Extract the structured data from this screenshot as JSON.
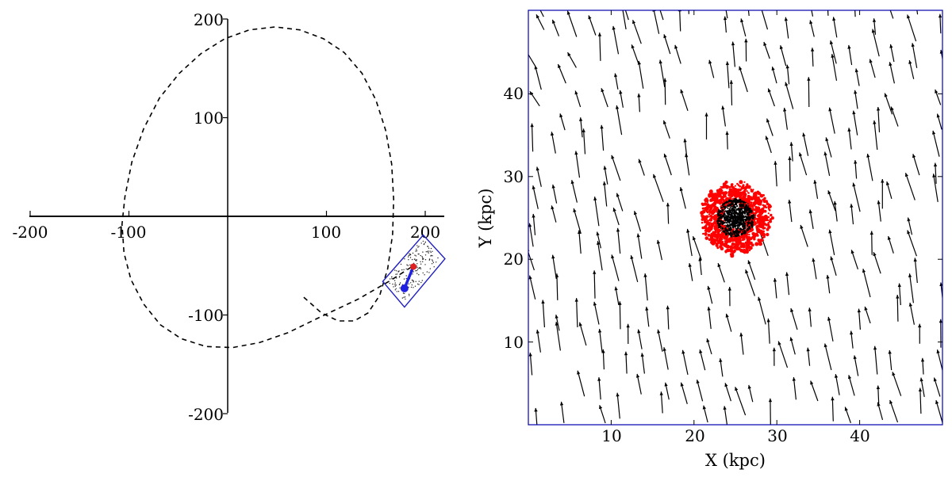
{
  "chart_data": [
    {
      "type": "line",
      "xlim": [
        -200,
        220
      ],
      "ylim": [
        -200,
        200
      ],
      "xticks": [
        "-200",
        "-100",
        "100",
        "200"
      ],
      "yticks": [
        "200",
        "100",
        "-100",
        "-200"
      ],
      "grid": false,
      "axes": "centered spines through origin",
      "series": [
        {
          "style": "dashed",
          "color": "#000000",
          "points": [
            [
              77,
              -82
            ],
            [
              95,
              -98
            ],
            [
              112,
              -106
            ],
            [
              128,
              -106
            ],
            [
              142,
              -98
            ],
            [
              154,
              -80
            ],
            [
              162,
              -53
            ],
            [
              167,
              -18
            ],
            [
              168,
              17
            ],
            [
              166,
              53
            ],
            [
              160,
              87
            ],
            [
              150,
              118
            ],
            [
              136,
              145
            ],
            [
              118,
              166
            ],
            [
              97,
              180
            ],
            [
              73,
              189
            ],
            [
              48,
              192
            ],
            [
              22,
              189
            ],
            [
              -3,
              180
            ],
            [
              -27,
              165
            ],
            [
              -49,
              145
            ],
            [
              -69,
              120
            ],
            [
              -85,
              89
            ],
            [
              -97,
              55
            ],
            [
              -104,
              20
            ],
            [
              -107,
              -8
            ],
            [
              -105,
              -37
            ],
            [
              -98,
              -64
            ],
            [
              -85,
              -89
            ],
            [
              -68,
              -110
            ],
            [
              -47,
              -124
            ],
            [
              -22,
              -132
            ],
            [
              5,
              -133
            ],
            [
              32,
              -128
            ],
            [
              61,
              -118
            ],
            [
              96,
              -101
            ],
            [
              132,
              -84
            ],
            [
              165,
              -65
            ],
            [
              188,
              -50
            ]
          ]
        }
      ],
      "annotations": {
        "field_box_corners": [
          [
            220,
            -43
          ],
          [
            179,
            -92
          ],
          [
            157,
            -66
          ],
          [
            198,
            -19
          ]
        ],
        "field_box_color": "#1f1fbf",
        "arrow_from": [
          188,
          -51
        ],
        "arrow_to": [
          179,
          -73
        ],
        "arrow_color": "#2020e0",
        "start_marker_color": "#e02020"
      }
    },
    {
      "type": "scatter",
      "subtype": "vector field with particle cloud",
      "xlabel": "X (kpc)",
      "ylabel": "Y (kpc)",
      "xlim": [
        0,
        50
      ],
      "ylim": [
        0,
        50
      ],
      "xticks": [
        "10",
        "20",
        "30",
        "40"
      ],
      "yticks": [
        "10",
        "20",
        "30",
        "40"
      ],
      "grid": false,
      "frame_color": "#0000aa",
      "vector_color": "#000000",
      "cloud_center": [
        25,
        25
      ],
      "cloud_color": "#ff0000",
      "core_color": "#000000",
      "cloud_inner_radius": 1.5,
      "cloud_outer_radius": 4.2,
      "vector_direction_deg": 100,
      "vector_length": 2.8
    }
  ]
}
